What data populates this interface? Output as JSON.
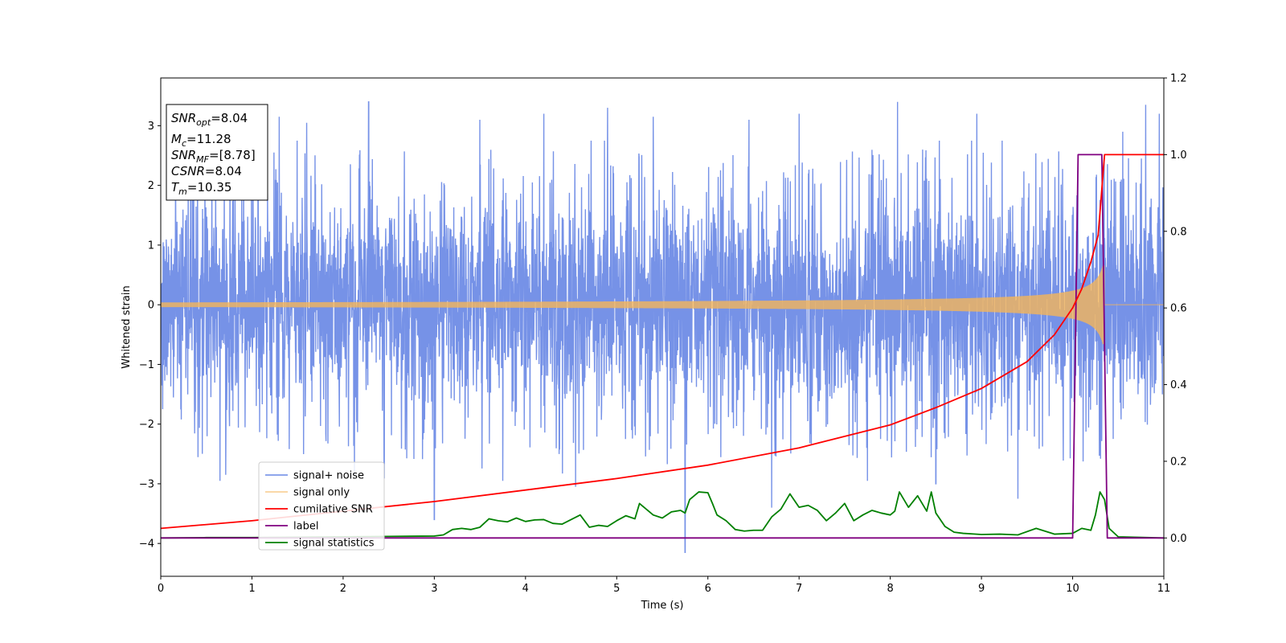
{
  "chart_data": {
    "type": "line",
    "xlabel": "Time (s)",
    "ylabel": "Whitened strain",
    "xlim": [
      0,
      11
    ],
    "ylim_left": [
      -4.55,
      3.8
    ],
    "ylim_right": [
      -0.1,
      1.2
    ],
    "x_ticks": [
      0,
      1,
      2,
      3,
      4,
      5,
      6,
      7,
      8,
      9,
      10,
      11
    ],
    "y_ticks_left": [
      -4,
      -3,
      -2,
      -1,
      0,
      1,
      2,
      3
    ],
    "y_ticks_right": [
      0.0,
      0.2,
      0.4,
      0.6,
      0.8,
      1.0,
      1.2
    ],
    "legend_placement": "lower-left",
    "series": [
      {
        "name": "signal+ noise",
        "axis": "left",
        "color": "#6a89e5",
        "kind": "noise",
        "spikes": [
          {
            "x": 0.65,
            "y": -2.95
          },
          {
            "x": 1.3,
            "y": 3.15
          },
          {
            "x": 1.6,
            "y": 3.05
          },
          {
            "x": 2.28,
            "y": 3.4
          },
          {
            "x": 2.45,
            "y": -2.9
          },
          {
            "x": 3.0,
            "y": -3.6
          },
          {
            "x": 3.5,
            "y": 3.1
          },
          {
            "x": 3.75,
            "y": -2.95
          },
          {
            "x": 4.2,
            "y": 3.2
          },
          {
            "x": 4.55,
            "y": -3.05
          },
          {
            "x": 4.9,
            "y": 3.3
          },
          {
            "x": 5.4,
            "y": 3.15
          },
          {
            "x": 5.75,
            "y": -4.15
          },
          {
            "x": 6.45,
            "y": 3.1
          },
          {
            "x": 6.7,
            "y": -3.4
          },
          {
            "x": 7.0,
            "y": 3.2
          },
          {
            "x": 7.75,
            "y": -2.95
          },
          {
            "x": 8.08,
            "y": 3.4
          },
          {
            "x": 8.5,
            "y": -3.0
          },
          {
            "x": 8.95,
            "y": 3.2
          },
          {
            "x": 9.4,
            "y": -3.25
          },
          {
            "x": 10.55,
            "y": 2.9
          },
          {
            "x": 10.8,
            "y": 3.35
          },
          {
            "x": 10.95,
            "y": 3.2
          }
        ]
      },
      {
        "name": "signal only",
        "axis": "left",
        "color": "#f5b55a",
        "kind": "chirp",
        "t_merge": 10.35,
        "peak_amplitude": 0.75
      },
      {
        "name": "cumilative SNR",
        "axis": "right",
        "color": "#ff0000",
        "x": [
          0,
          1,
          2,
          3,
          4,
          5,
          6,
          7,
          8,
          8.5,
          9,
          9.5,
          9.8,
          10.0,
          10.1,
          10.2,
          10.28,
          10.35,
          11
        ],
        "values": [
          0.025,
          0.045,
          0.07,
          0.095,
          0.125,
          0.155,
          0.19,
          0.235,
          0.295,
          0.34,
          0.39,
          0.46,
          0.53,
          0.6,
          0.65,
          0.72,
          0.79,
          1.0,
          1.0
        ]
      },
      {
        "name": "label",
        "axis": "right",
        "color": "#800080",
        "x": [
          0,
          10.0,
          10.06,
          10.32,
          10.38,
          11
        ],
        "values": [
          0,
          0,
          1,
          1,
          0,
          0
        ]
      },
      {
        "name": "signal statistics",
        "axis": "right",
        "color": "#008000",
        "x": [
          0,
          0.5,
          1.0,
          1.5,
          2.0,
          2.5,
          3.0,
          3.1,
          3.2,
          3.3,
          3.4,
          3.5,
          3.6,
          3.7,
          3.8,
          3.9,
          4.0,
          4.1,
          4.2,
          4.3,
          4.4,
          4.5,
          4.6,
          4.7,
          4.8,
          4.9,
          5.0,
          5.1,
          5.2,
          5.25,
          5.3,
          5.4,
          5.5,
          5.6,
          5.7,
          5.75,
          5.8,
          5.9,
          6.0,
          6.05,
          6.1,
          6.2,
          6.3,
          6.4,
          6.5,
          6.6,
          6.7,
          6.8,
          6.9,
          7.0,
          7.1,
          7.2,
          7.3,
          7.4,
          7.5,
          7.6,
          7.7,
          7.8,
          7.9,
          8.0,
          8.05,
          8.1,
          8.2,
          8.3,
          8.4,
          8.45,
          8.5,
          8.6,
          8.7,
          8.8,
          9.0,
          9.2,
          9.4,
          9.6,
          9.8,
          10.0,
          10.1,
          10.2,
          10.25,
          10.3,
          10.35,
          10.4,
          10.5,
          11
        ],
        "values": [
          0.0,
          0.001,
          0.001,
          0.002,
          0.003,
          0.004,
          0.005,
          0.008,
          0.022,
          0.025,
          0.022,
          0.028,
          0.05,
          0.045,
          0.042,
          0.052,
          0.043,
          0.047,
          0.048,
          0.038,
          0.036,
          0.048,
          0.06,
          0.028,
          0.033,
          0.03,
          0.045,
          0.058,
          0.05,
          0.09,
          0.08,
          0.06,
          0.052,
          0.068,
          0.072,
          0.065,
          0.1,
          0.12,
          0.118,
          0.09,
          0.06,
          0.045,
          0.022,
          0.018,
          0.02,
          0.02,
          0.055,
          0.075,
          0.115,
          0.08,
          0.085,
          0.072,
          0.045,
          0.065,
          0.09,
          0.045,
          0.06,
          0.072,
          0.065,
          0.06,
          0.07,
          0.12,
          0.08,
          0.11,
          0.07,
          0.12,
          0.065,
          0.03,
          0.015,
          0.012,
          0.009,
          0.01,
          0.008,
          0.025,
          0.01,
          0.012,
          0.025,
          0.02,
          0.06,
          0.12,
          0.1,
          0.025,
          0.003,
          0.0
        ]
      }
    ]
  },
  "info_box": {
    "lines": [
      {
        "var": "SNR",
        "sub": "opt",
        "value": "=8.04"
      },
      {
        "var": "M",
        "sub": "c",
        "value": "=11.28"
      },
      {
        "var": "SNR",
        "sub": "MF",
        "value": "=[8.78]"
      },
      {
        "var": "CSNR",
        "sub": "",
        "value": "=8.04"
      },
      {
        "var": "T",
        "sub": "m",
        "value": "=10.35"
      }
    ]
  }
}
